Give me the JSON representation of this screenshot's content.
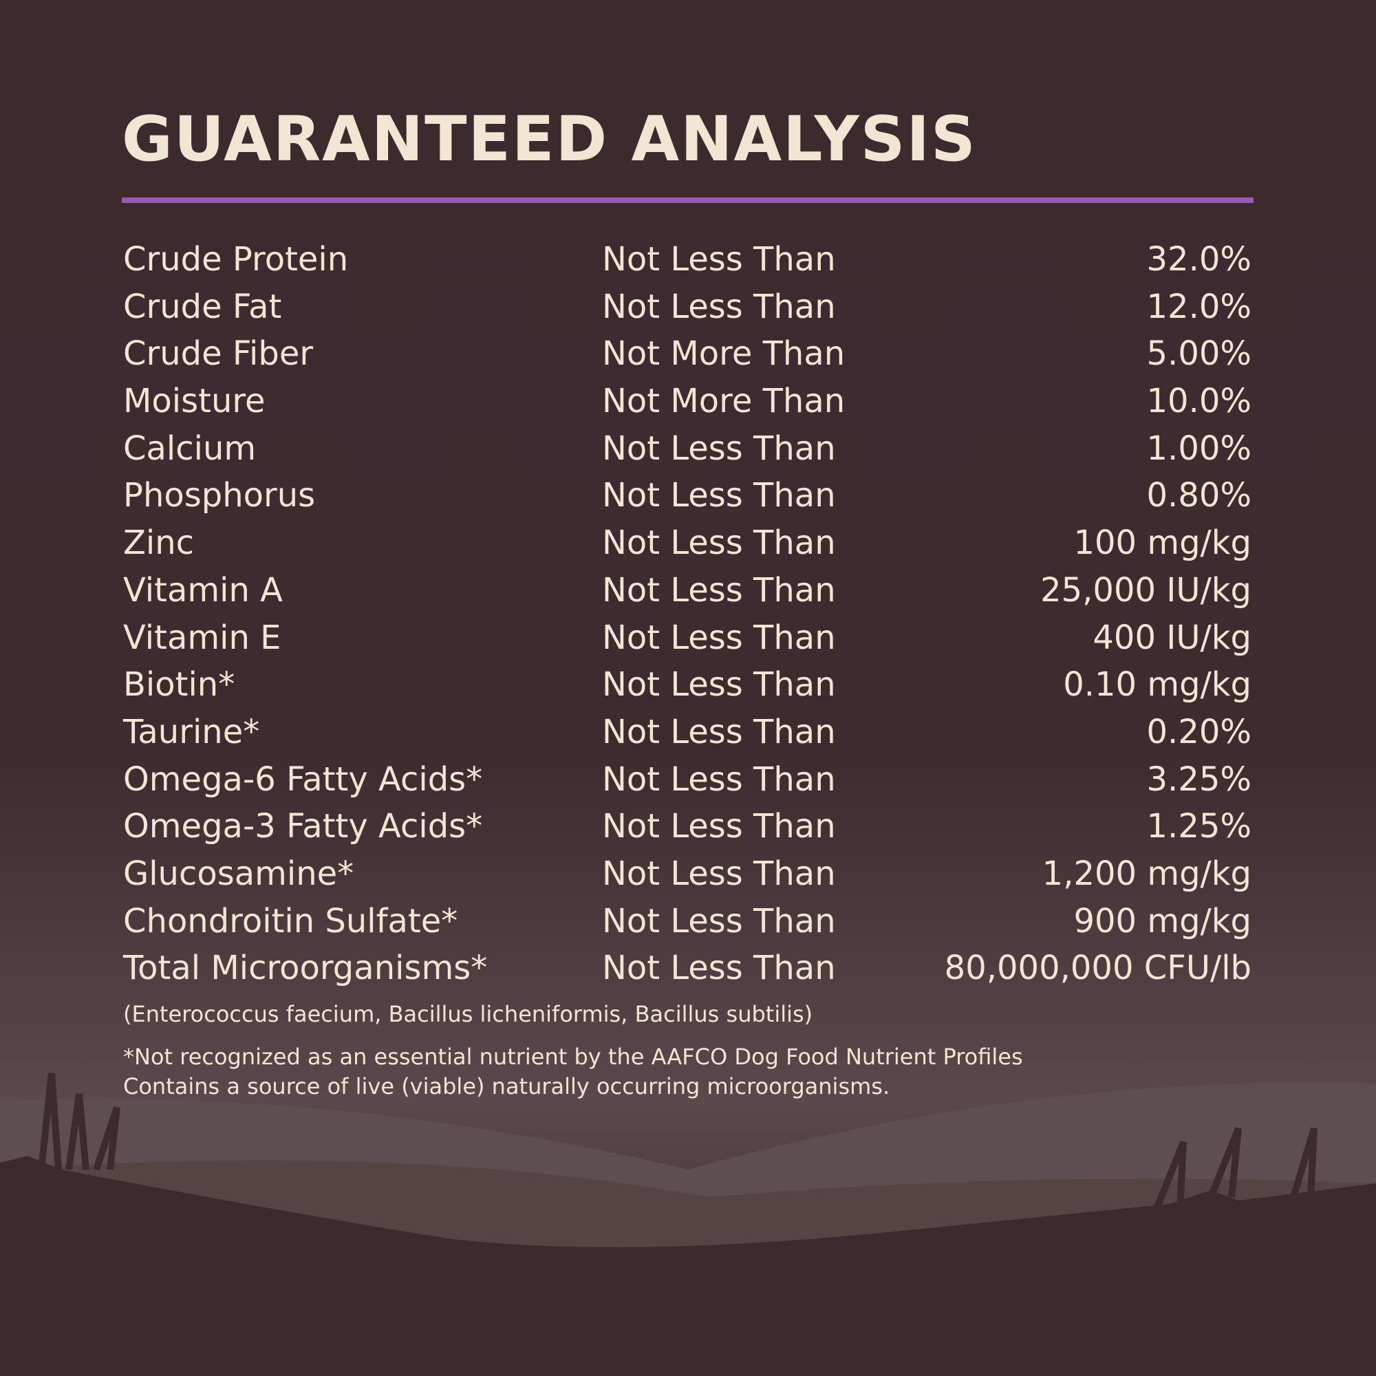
{
  "header": {
    "title": "GUARANTEED ANALYSIS"
  },
  "table": {
    "rows": [
      [
        "Crude Protein",
        "Not Less Than",
        "32.0%"
      ],
      [
        "Crude Fat",
        "Not Less Than",
        "12.0%"
      ],
      [
        "Crude Fiber",
        "Not More Than",
        "5.00%"
      ],
      [
        "Moisture",
        "Not More Than",
        "10.0%"
      ],
      [
        "Calcium",
        "Not Less Than",
        "1.00%"
      ],
      [
        "Phosphorus",
        "Not Less Than",
        "0.80%"
      ],
      [
        "Zinc",
        "Not Less Than",
        "100 mg/kg"
      ],
      [
        "Vitamin A",
        "Not Less Than",
        "25,000 IU/kg"
      ],
      [
        "Vitamin E",
        "Not Less Than",
        "400 IU/kg"
      ],
      [
        "Biotin*",
        "Not Less Than",
        "0.10 mg/kg"
      ],
      [
        "Taurine*",
        "Not Less Than",
        "0.20%"
      ],
      [
        "Omega-6 Fatty Acids*",
        "Not Less Than",
        "3.25%"
      ],
      [
        "Omega-3 Fatty Acids*",
        "Not Less Than",
        "1.25%"
      ],
      [
        "Glucosamine*",
        "Not Less Than",
        "1,200 mg/kg"
      ],
      [
        "Chondroitin Sulfate*",
        "Not Less Than",
        "900 mg/kg"
      ],
      [
        "Total Microorganisms*",
        "Not Less Than",
        "80,000,000 CFU/lb"
      ]
    ]
  },
  "note": "(Enterococcus faecium, Bacillus licheniformis, Bacillus subtilis)",
  "footnotes": [
    "*Not recognized as an essential nutrient by the AAFCO Dog Food Nutrient Profiles",
    "Contains a source of live (viable) naturally occurring microorganisms."
  ]
}
